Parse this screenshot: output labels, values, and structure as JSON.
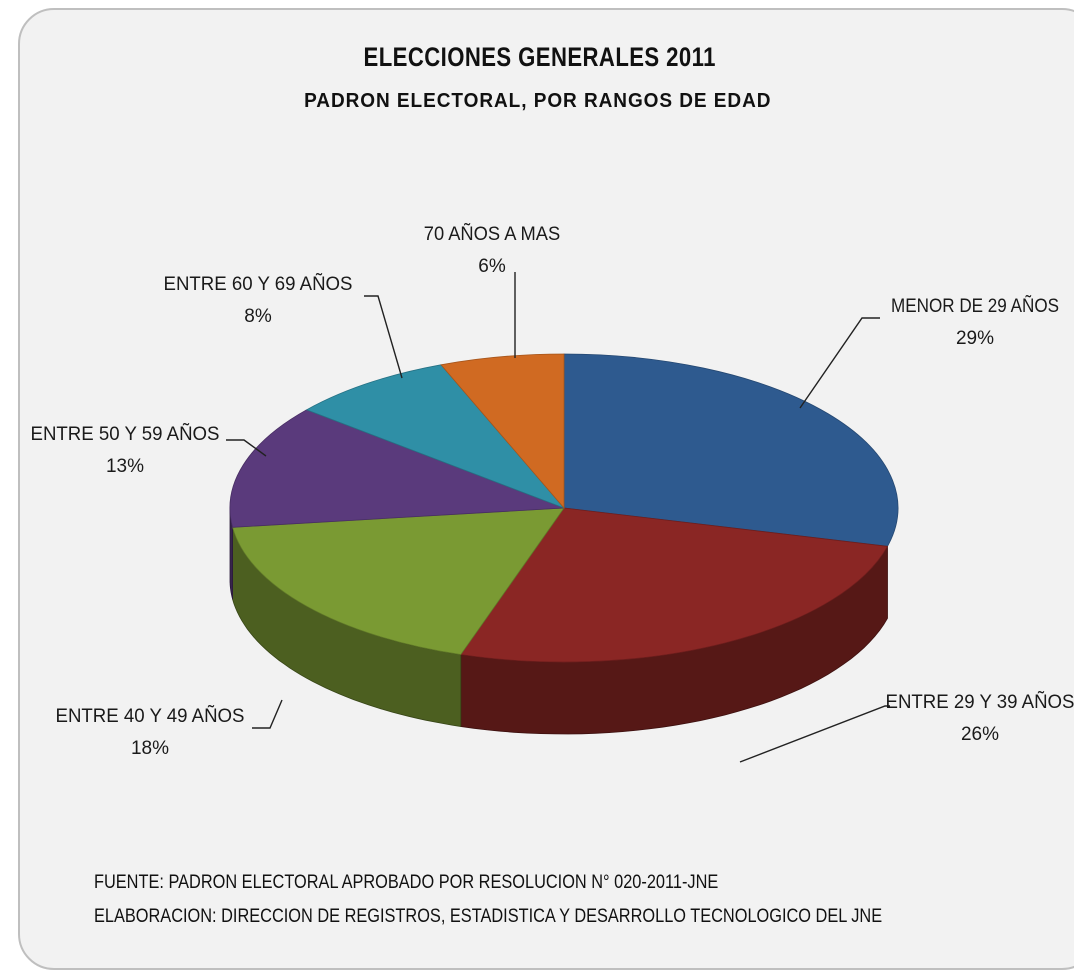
{
  "chart_data": {
    "type": "pie",
    "title": "ELECCIONES GENERALES 2011",
    "subtitle": "PADRON ELECTORAL, POR RANGOS DE EDAD",
    "slices": [
      {
        "label": "MENOR DE 29 AÑOS",
        "value": 29,
        "value_label": "29%",
        "color": "#2e5a8f"
      },
      {
        "label": "ENTRE 29 Y 39 AÑOS",
        "value": 26,
        "value_label": "26%",
        "color": "#8a2624"
      },
      {
        "label": "ENTRE 40 Y 49 AÑOS",
        "value": 18,
        "value_label": "18%",
        "color": "#7a9a33"
      },
      {
        "label": "ENTRE 50 Y 59 AÑOS",
        "value": 13,
        "value_label": "13%",
        "color": "#5a3a7c"
      },
      {
        "label": "ENTRE 60 Y 69 AÑOS",
        "value": 8,
        "value_label": "8%",
        "color": "#2f8fa6"
      },
      {
        "label": "70 AÑOS A MAS",
        "value": 6,
        "value_label": "6%",
        "color": "#d06a22"
      }
    ]
  },
  "footer": {
    "source": "FUENTE: PADRON ELECTORAL APROBADO POR RESOLUCION N° 020-2011-JNE",
    "elaboration": "ELABORACION: DIRECCION DE REGISTROS, ESTADISTICA Y DESARROLLO TECNOLOGICO DEL JNE"
  }
}
